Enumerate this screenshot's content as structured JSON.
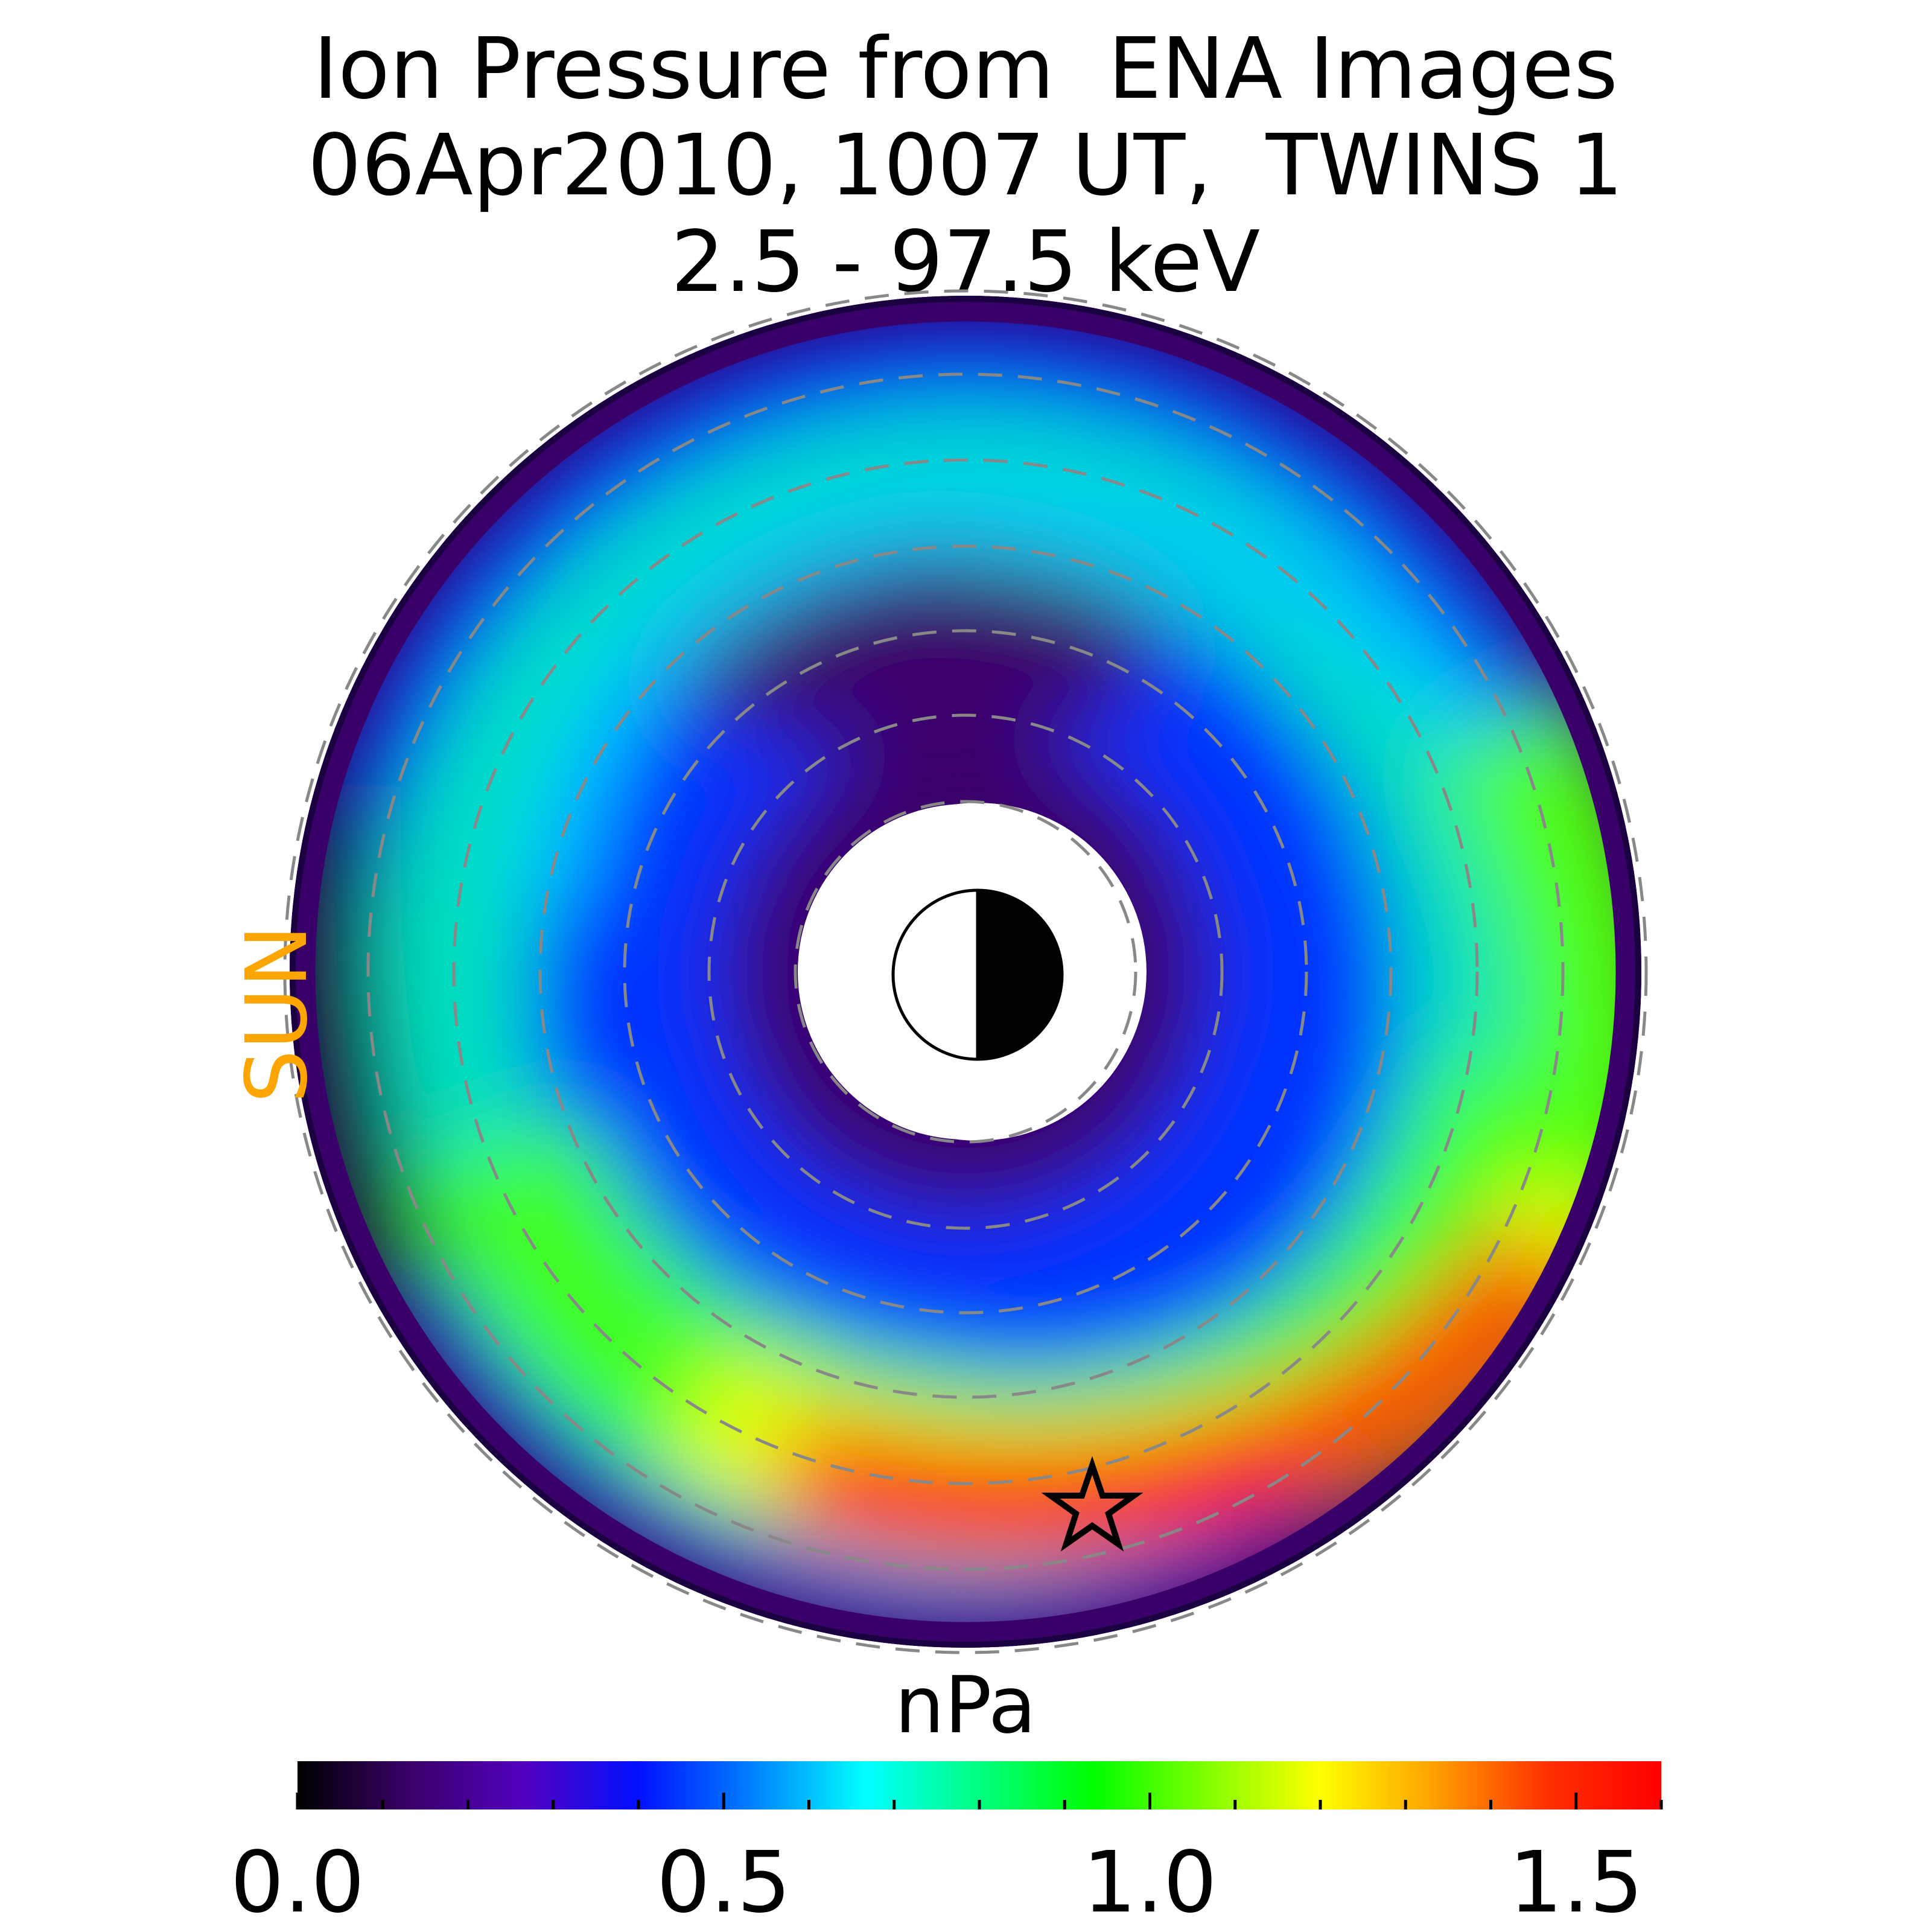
{
  "title": {
    "line1": "Ion Pressure from  ENA Images",
    "line2": "06Apr2010, 1007 UT,  TWINS 1",
    "line3": "2.5 - 97.5 keV"
  },
  "sun_label": "SUN",
  "colorbar": {
    "unit": "nPa",
    "min": 0.0,
    "max": 1.6,
    "ticks": [
      "0.0",
      "0.5",
      "1.0",
      "1.5"
    ],
    "tick_values": [
      0.0,
      0.5,
      1.0,
      1.5
    ],
    "colormap": [
      "#000000",
      "#3a006a",
      "#5200c0",
      "#0010ff",
      "#0080ff",
      "#00ffff",
      "#00ff80",
      "#00ff00",
      "#80ff00",
      "#ffff00",
      "#ffa000",
      "#ff3000",
      "#ff0000"
    ]
  },
  "chart_data": {
    "type": "heatmap",
    "title": "Ion Pressure from  ENA Images 06Apr2010, 1007 UT,  TWINS 1 2.5 - 97.5 keV",
    "colorbar_label": "nPa",
    "value_range": [
      0.0,
      1.6
    ],
    "projection": "polar equatorial plane, Sun to the left",
    "dashed_circles": 8,
    "grid": true,
    "features": [
      {
        "region": "pre-midnight / dusk inner ring",
        "pressure_nPa": 1.55
      },
      {
        "region": "outer ring dawn-side",
        "pressure_nPa": 0.9
      },
      {
        "region": "inner edge",
        "pressure_nPa": 0.1
      },
      {
        "region": "outer edge",
        "pressure_nPa": 0.05
      }
    ],
    "peak_marker": "star"
  },
  "icons": {
    "earth": "earth-day-night-icon",
    "peak": "star-icon"
  }
}
